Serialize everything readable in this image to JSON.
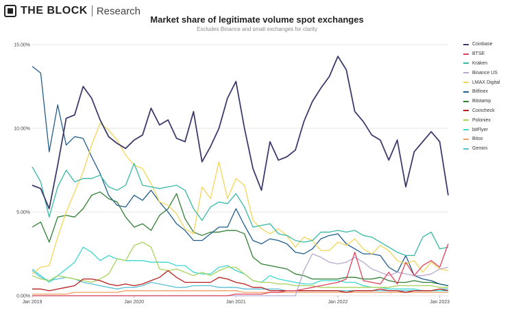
{
  "brand": {
    "name": "THE BLOCK",
    "sub": "Research"
  },
  "chart_data": {
    "type": "line",
    "title": "Market share of legitimate volume spot exchanges",
    "subtitle": "Excludes Binance and small exchanges for clarity",
    "xlabel": "",
    "ylabel": "",
    "ylim": [
      0,
      15
    ],
    "yticks": [
      "0.00%",
      "5.00%",
      "10.00%",
      "15.00%"
    ],
    "xticks": [
      "Jan 2019",
      "Jan 2020",
      "Jan 2021",
      "Jan 2022",
      "Jan 2023"
    ],
    "grid": "horizontal",
    "legend_position": "right",
    "x": [
      "2019-01",
      "2019-02",
      "2019-03",
      "2019-04",
      "2019-05",
      "2019-06",
      "2019-07",
      "2019-08",
      "2019-09",
      "2019-10",
      "2019-11",
      "2019-12",
      "2020-01",
      "2020-02",
      "2020-03",
      "2020-04",
      "2020-05",
      "2020-06",
      "2020-07",
      "2020-08",
      "2020-09",
      "2020-10",
      "2020-11",
      "2020-12",
      "2021-01",
      "2021-02",
      "2021-03",
      "2021-04",
      "2021-05",
      "2021-06",
      "2021-07",
      "2021-08",
      "2021-09",
      "2021-10",
      "2021-11",
      "2021-12",
      "2022-01",
      "2022-02",
      "2022-03",
      "2022-04",
      "2022-05",
      "2022-06",
      "2022-07",
      "2022-08",
      "2022-09",
      "2022-10",
      "2022-11",
      "2022-12",
      "2023-01",
      "2023-02"
    ],
    "series": [
      {
        "name": "Coinbase",
        "color": "#3b3a6b",
        "values": [
          6.6,
          6.4,
          5.2,
          7.8,
          10.6,
          10.8,
          12.5,
          11.8,
          10.5,
          9.5,
          9.1,
          8.8,
          9.3,
          9.6,
          11.2,
          10.2,
          10.5,
          9.4,
          9.2,
          11.0,
          8.0,
          8.9,
          10.0,
          11.8,
          12.8,
          10.0,
          7.6,
          6.3,
          9.2,
          8.1,
          8.3,
          8.7,
          10.4,
          11.6,
          12.4,
          13.1,
          14.3,
          13.5,
          11.0,
          10.4,
          9.6,
          9.3,
          8.1,
          9.3,
          6.5,
          8.6,
          9.2,
          9.8,
          9.2,
          6.0
        ]
      },
      {
        "name": "BTSE",
        "color": "#e0415a",
        "values": [
          0,
          0,
          0,
          0,
          0,
          0,
          0,
          0,
          0,
          0,
          0,
          0,
          0,
          0,
          0,
          0,
          0,
          0,
          0,
          0,
          0,
          0,
          0,
          0,
          0.1,
          0.1,
          0.1,
          0.1,
          0.2,
          0.2,
          0.3,
          0.3,
          0.4,
          0.5,
          0.6,
          0.7,
          0.8,
          1.0,
          2.6,
          0.9,
          0.8,
          0.7,
          1.4,
          0.7,
          2.0,
          1.2,
          1.8,
          2.1,
          1.7,
          3.1
        ]
      },
      {
        "name": "Kraken",
        "color": "#35b8a4",
        "values": [
          7.7,
          6.8,
          4.7,
          6.5,
          7.5,
          6.8,
          7.0,
          7.0,
          7.2,
          6.5,
          6.3,
          6.6,
          7.9,
          6.6,
          6.5,
          6.4,
          6.5,
          6.6,
          6.3,
          5.2,
          4.5,
          5.3,
          5.6,
          5.5,
          6.1,
          5.3,
          4.1,
          4.2,
          4.3,
          3.7,
          3.6,
          3.3,
          3.2,
          3.3,
          3.8,
          3.8,
          3.9,
          3.8,
          3.9,
          3.6,
          3.5,
          3.2,
          2.9,
          2.6,
          2.4,
          2.4,
          3.5,
          3.8,
          2.8,
          2.9
        ]
      },
      {
        "name": "Binance US",
        "color": "#b9a9d1",
        "values": [
          0,
          0,
          0,
          0,
          0,
          0,
          0,
          0,
          0,
          0,
          0,
          0,
          0,
          0,
          0,
          0,
          0,
          0,
          0,
          0,
          0,
          0,
          0,
          0,
          0,
          0,
          0,
          0,
          0,
          0,
          0,
          0,
          1.5,
          2.5,
          2.3,
          2.0,
          1.9,
          2.0,
          2.3,
          2.0,
          1.6,
          1.4,
          1.2,
          1.4,
          1.3,
          1.2,
          1.2,
          1.3,
          1.6,
          1.7
        ]
      },
      {
        "name": "LMAX Digital",
        "color": "#f2d65a",
        "values": [
          1.3,
          1.7,
          1.8,
          3.5,
          5.0,
          6.2,
          7.4,
          9.0,
          10.3,
          9.9,
          9.3,
          8.4,
          7.8,
          7.6,
          6.7,
          5.6,
          5.4,
          4.9,
          4.0,
          3.7,
          6.5,
          5.8,
          8.0,
          5.8,
          7.0,
          6.6,
          4.5,
          4.0,
          3.7,
          4.0,
          3.6,
          2.9,
          3.5,
          3.3,
          2.7,
          2.7,
          3.2,
          3.0,
          3.4,
          2.8,
          2.5,
          3.0,
          2.7,
          2.1,
          1.9,
          2.1,
          1.4,
          2.0,
          1.6,
          1.5
        ]
      },
      {
        "name": "Bitfinex",
        "color": "#1f5c8c",
        "values": [
          13.7,
          13.3,
          8.6,
          11.4,
          9.0,
          9.5,
          9.4,
          8.3,
          7.3,
          6.0,
          5.4,
          5.3,
          6.0,
          5.7,
          6.3,
          5.6,
          5.0,
          4.3,
          3.9,
          3.3,
          3.3,
          3.7,
          4.1,
          4.1,
          5.2,
          4.2,
          3.3,
          3.1,
          3.4,
          3.3,
          3.1,
          2.6,
          2.5,
          2.8,
          3.4,
          3.6,
          3.7,
          3.1,
          2.8,
          2.5,
          2.5,
          2.4,
          1.7,
          1.4,
          2.4,
          1.2,
          1.0,
          0.9,
          0.7,
          0.6
        ]
      },
      {
        "name": "Bitstamp",
        "color": "#2e7d32",
        "values": [
          4.1,
          4.4,
          3.2,
          4.7,
          4.8,
          4.7,
          5.2,
          6.0,
          6.2,
          5.8,
          5.6,
          4.7,
          4.1,
          4.3,
          3.9,
          4.8,
          5.2,
          6.1,
          4.6,
          3.8,
          3.6,
          3.8,
          3.8,
          3.9,
          3.9,
          3.7,
          2.3,
          1.9,
          1.8,
          1.7,
          1.6,
          1.3,
          1.2,
          1.0,
          1.0,
          1.0,
          1.0,
          1.1,
          1.1,
          1.0,
          1.0,
          1.1,
          0.9,
          0.8,
          0.8,
          0.9,
          0.8,
          0.8,
          0.7,
          0.6
        ]
      },
      {
        "name": "Coincheck",
        "color": "#b71c1c",
        "values": [
          0.4,
          0.4,
          0.3,
          0.4,
          0.5,
          0.6,
          1.0,
          1.0,
          0.9,
          0.7,
          0.6,
          0.7,
          0.6,
          0.7,
          0.9,
          1.1,
          1.5,
          1.1,
          0.8,
          0.8,
          0.8,
          0.8,
          1.1,
          1.0,
          0.8,
          0.7,
          0.5,
          0.5,
          0.3,
          0.3,
          0.3,
          0.3,
          0.3,
          0.3,
          0.3,
          0.3,
          0.3,
          0.2,
          0.3,
          0.3,
          0.3,
          0.4,
          0.3,
          0.3,
          0.2,
          0.3,
          0.3,
          0.3,
          0.4,
          0.3
        ]
      },
      {
        "name": "Poloniex",
        "color": "#a7d35a",
        "values": [
          1.2,
          1.0,
          0.9,
          1.2,
          1.1,
          1.0,
          0.9,
          0.8,
          1.0,
          1.3,
          2.2,
          2.1,
          3.0,
          3.2,
          2.9,
          1.6,
          1.5,
          1.6,
          1.4,
          1.2,
          1.4,
          1.2,
          1.5,
          1.7,
          1.7,
          1.3,
          0.9,
          0.8,
          0.8,
          0.7,
          0.7,
          0.6,
          0.6,
          0.6,
          0.5,
          0.5,
          0.5,
          0.5,
          0.5,
          0.5,
          0.5,
          0.5,
          0.5,
          0.6,
          0.6,
          0.6,
          0.6,
          0.6,
          0.5,
          0.5
        ]
      },
      {
        "name": "bitFlyer",
        "color": "#39d7d0",
        "values": [
          1.6,
          1.2,
          0.8,
          1.2,
          1.6,
          2.0,
          2.9,
          2.6,
          2.1,
          2.4,
          2.2,
          2.1,
          2.1,
          2.1,
          2.0,
          2.0,
          2.0,
          1.8,
          1.8,
          1.4,
          1.3,
          1.3,
          1.7,
          1.8,
          1.5,
          1.3,
          0.9,
          0.8,
          1.2,
          1.0,
          0.9,
          0.8,
          0.7,
          0.7,
          0.9,
          0.9,
          0.9,
          0.8,
          0.8,
          0.6,
          0.5,
          0.5,
          0.4,
          0.4,
          0.4,
          0.4,
          0.3,
          0.3,
          0.3,
          0.3
        ]
      },
      {
        "name": "Bitso",
        "color": "#f0a060",
        "values": [
          0.1,
          0.1,
          0.1,
          0.1,
          0.1,
          0.2,
          0.2,
          0.2,
          0.2,
          0.2,
          0.2,
          0.3,
          0.3,
          0.3,
          0.3,
          0.3,
          0.3,
          0.3,
          0.3,
          0.3,
          0.3,
          0.3,
          0.3,
          0.3,
          0.3,
          0.2,
          0.2,
          0.2,
          0.2,
          0.2,
          0.2,
          0.2,
          0.2,
          0.2,
          0.2,
          0.2,
          0.2,
          0.2,
          0.2,
          0.2,
          0.2,
          0.2,
          0.2,
          0.2,
          0.2,
          0.2,
          0.2,
          0.2,
          0.2,
          0.2
        ]
      },
      {
        "name": "Gemini",
        "color": "#5bbfd6",
        "values": [
          1.5,
          1.1,
          0.9,
          1.0,
          1.1,
          1.0,
          0.8,
          0.7,
          0.6,
          0.5,
          0.4,
          0.5,
          0.5,
          0.6,
          0.8,
          0.7,
          0.6,
          0.5,
          0.5,
          0.6,
          0.6,
          0.6,
          0.5,
          0.5,
          0.5,
          0.4,
          0.4,
          0.4,
          0.4,
          0.4,
          0.3,
          0.3,
          0.3,
          0.3,
          0.3,
          0.3,
          0.3,
          0.3,
          0.3,
          0.3,
          0.3,
          0.3,
          0.3,
          0.3,
          0.3,
          0.3,
          0.3,
          0.3,
          0.4,
          0.4
        ]
      }
    ]
  }
}
